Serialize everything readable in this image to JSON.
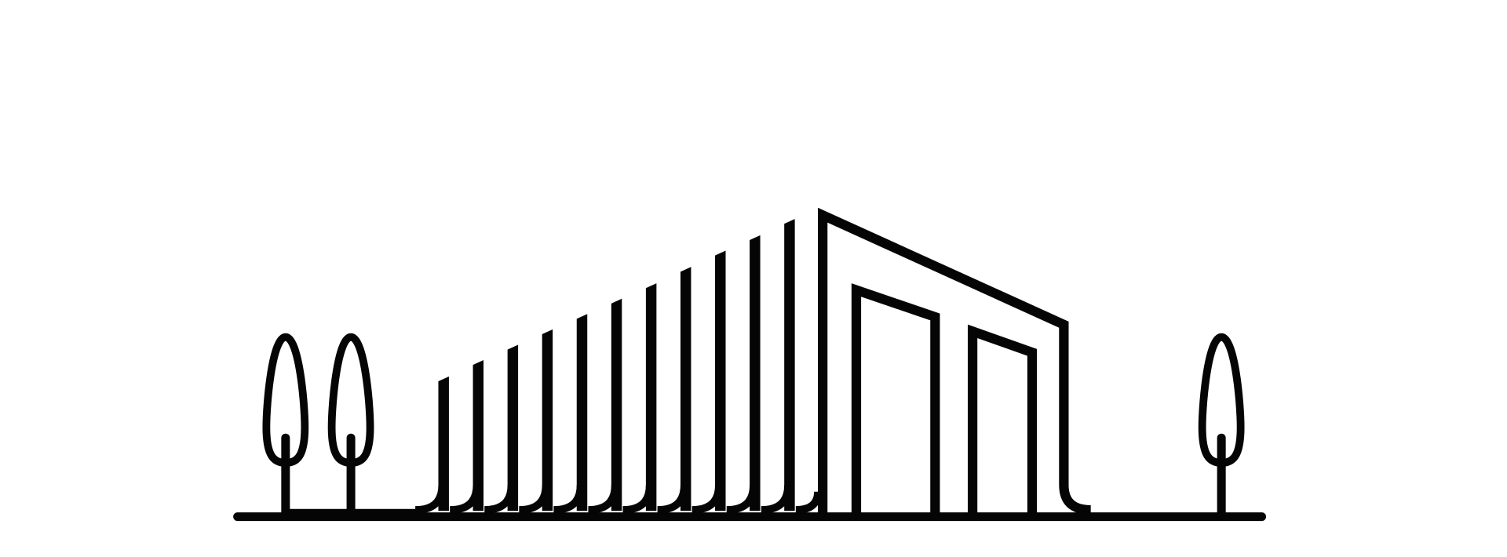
{
  "illustration": {
    "subject": "building-with-trees-line-art",
    "colors": {
      "stroke": "#050505",
      "background": "#ffffff"
    },
    "fins": [
      393,
      376,
      360,
      344,
      328,
      312,
      296,
      279,
      262,
      246,
      229
    ],
    "trees": 3
  }
}
